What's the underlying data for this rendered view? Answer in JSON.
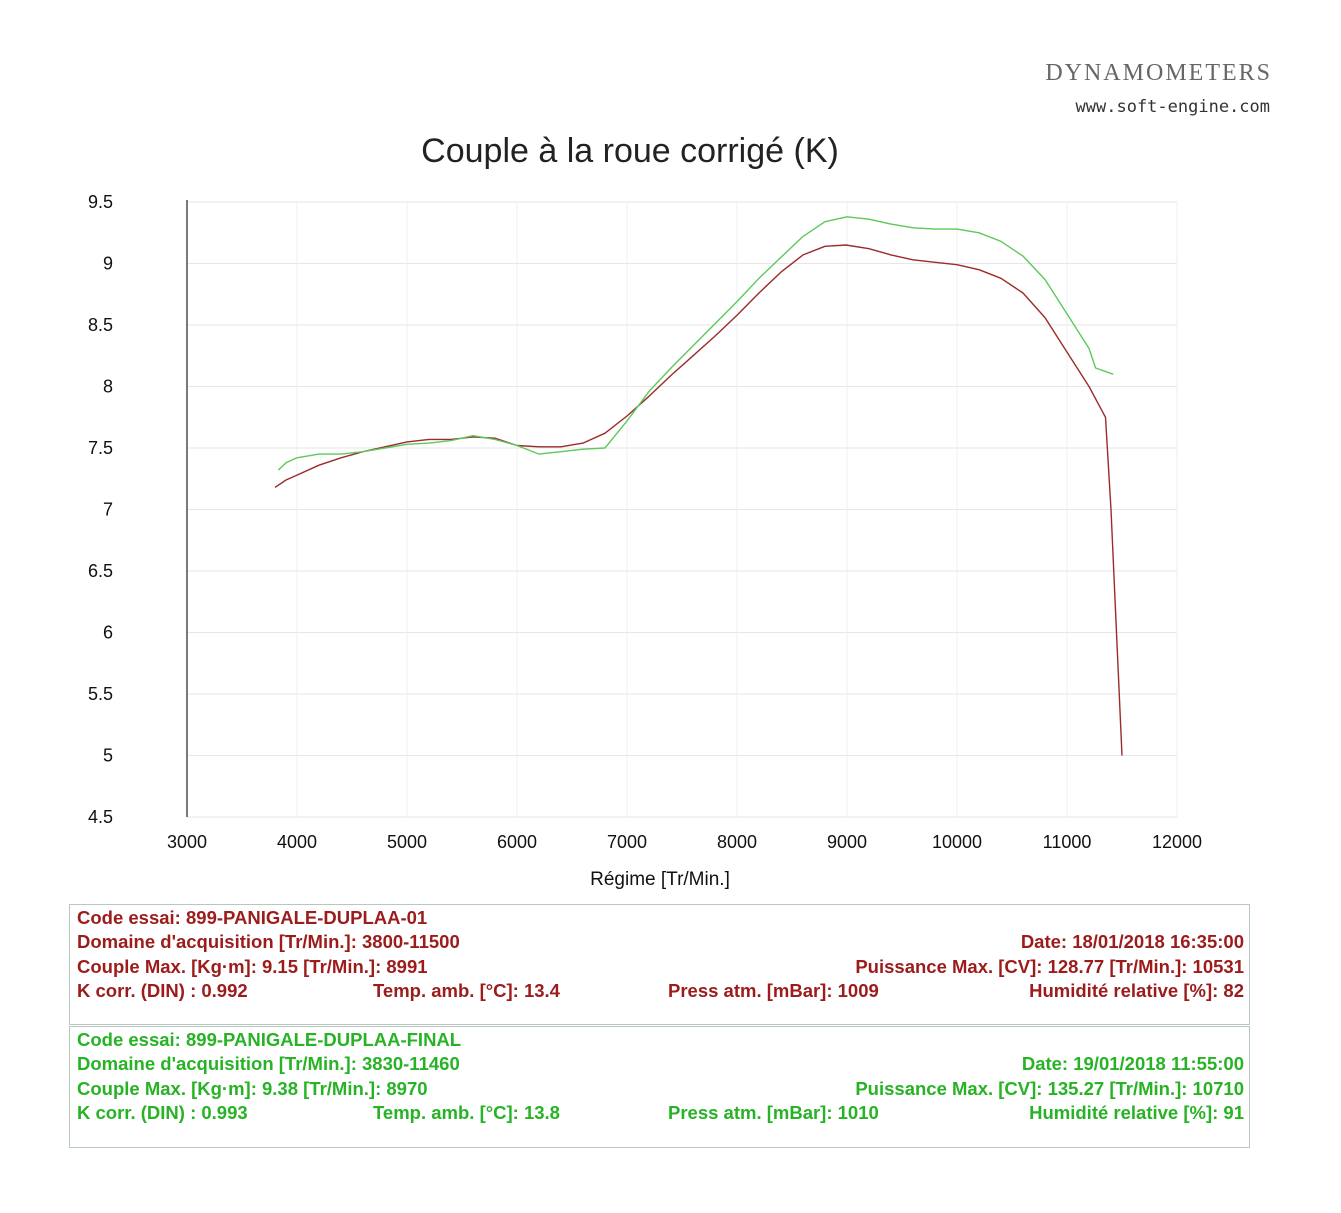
{
  "header": {
    "brand": "DYNAMOMETERS",
    "website": "www.soft-engine.com"
  },
  "chart_data": {
    "type": "line",
    "title": "Couple à la roue corrigé (K)",
    "xlabel": "Régime [Tr/Min.]",
    "ylabel": "",
    "xlim": [
      3000,
      12000
    ],
    "ylim": [
      4.5,
      9.5
    ],
    "xticks": [
      3000,
      4000,
      5000,
      6000,
      7000,
      8000,
      9000,
      10000,
      11000,
      12000
    ],
    "yticks": [
      4.5,
      5,
      5.5,
      6,
      6.5,
      7,
      7.5,
      8,
      8.5,
      9,
      9.5
    ],
    "xtick_labels": [
      "3000",
      "4000",
      "5000",
      "6000",
      "7000",
      "8000",
      "9000",
      "10000",
      "11000",
      "12000"
    ],
    "ytick_labels": [
      "4.5",
      "5",
      "5.5",
      "6",
      "6.5",
      "7",
      "7.5",
      "8",
      "8.5",
      "9",
      "9.5"
    ],
    "grid": true,
    "series": [
      {
        "color": "#9c2b2b",
        "x": [
          3800,
          3900,
          4000,
          4200,
          4400,
          4600,
          4800,
          5000,
          5200,
          5400,
          5600,
          5800,
          6000,
          6200,
          6400,
          6600,
          6800,
          7000,
          7200,
          7400,
          7600,
          7800,
          8000,
          8200,
          8400,
          8600,
          8800,
          8991,
          9200,
          9400,
          9600,
          9800,
          10000,
          10200,
          10400,
          10600,
          10800,
          11000,
          11200,
          11350,
          11400,
          11450,
          11500
        ],
        "y": [
          7.18,
          7.24,
          7.28,
          7.36,
          7.42,
          7.47,
          7.51,
          7.55,
          7.57,
          7.57,
          7.59,
          7.58,
          7.52,
          7.51,
          7.51,
          7.54,
          7.62,
          7.76,
          7.92,
          8.09,
          8.25,
          8.41,
          8.58,
          8.76,
          8.93,
          9.07,
          9.14,
          9.15,
          9.12,
          9.07,
          9.03,
          9.01,
          8.99,
          8.95,
          8.88,
          8.76,
          8.56,
          8.28,
          8.0,
          7.75,
          7.0,
          6.0,
          5.0
        ]
      },
      {
        "color": "#5cc95c",
        "x": [
          3830,
          3900,
          4000,
          4200,
          4400,
          4600,
          4800,
          5000,
          5200,
          5400,
          5600,
          5800,
          6000,
          6200,
          6400,
          6600,
          6800,
          7000,
          7200,
          7400,
          7600,
          7800,
          8000,
          8200,
          8400,
          8600,
          8800,
          9000,
          9200,
          9400,
          9600,
          9800,
          10000,
          10200,
          10400,
          10600,
          10800,
          11000,
          11200,
          11260,
          11420
        ],
        "y": [
          7.32,
          7.38,
          7.42,
          7.45,
          7.45,
          7.47,
          7.5,
          7.53,
          7.54,
          7.56,
          7.6,
          7.57,
          7.52,
          7.45,
          7.47,
          7.49,
          7.5,
          7.72,
          7.96,
          8.15,
          8.33,
          8.51,
          8.69,
          8.88,
          9.05,
          9.22,
          9.34,
          9.38,
          9.36,
          9.32,
          9.29,
          9.28,
          9.28,
          9.25,
          9.18,
          9.06,
          8.87,
          8.59,
          8.31,
          8.15,
          8.1
        ]
      }
    ]
  },
  "runs": [
    {
      "code": "Code essai: 899-PANIGALE-DUPLAA-01",
      "domain": "Domaine d'acquisition [Tr/Min.]: 3800-11500",
      "date": "Date: 18/01/2018   16:35:00",
      "couple": "Couple Max. [Kg·m]: 9.15   [Tr/Min.]: 8991",
      "puissance": "Puissance Max. [CV]: 128.77   [Tr/Min.]: 10531",
      "kcorr": "K corr. (DIN) : 0.992",
      "temp": "Temp. amb. [°C]: 13.4",
      "press": "Press atm. [mBar]: 1009",
      "humid": "Humidité relative [%]: 82"
    },
    {
      "code": "Code essai: 899-PANIGALE-DUPLAA-FINAL",
      "domain": "Domaine d'acquisition [Tr/Min.]: 3830-11460",
      "date": "Date: 19/01/2018   11:55:00",
      "couple": "Couple Max. [Kg·m]: 9.38   [Tr/Min.]: 8970",
      "puissance": "Puissance Max. [CV]: 135.27   [Tr/Min.]: 10710",
      "kcorr": "K corr. (DIN) : 0.993",
      "temp": "Temp. amb. [°C]: 13.8",
      "press": "Press atm. [mBar]: 1010",
      "humid": "Humidité relative [%]: 91"
    }
  ]
}
